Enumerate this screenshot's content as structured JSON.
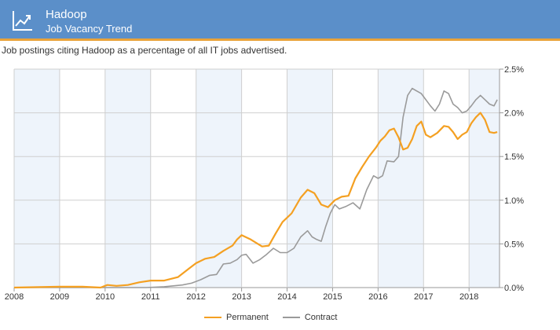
{
  "header": {
    "title": "Hadoop",
    "subtitle": "Job Vacancy Trend",
    "icon": "trend-line-icon",
    "background_color": "#5b8fc9",
    "accent_color": "#e9a33a"
  },
  "description": "Job postings citing Hadoop as a percentage of all IT jobs advertised.",
  "chart_data": {
    "type": "line",
    "title": "",
    "xlabel": "",
    "ylabel": "",
    "x_ticks": [
      "2008",
      "2009",
      "2010",
      "2011",
      "2012",
      "2013",
      "2014",
      "2015",
      "2016",
      "2017",
      "2018"
    ],
    "y_ticks": [
      "0.0%",
      "0.5%",
      "1.0%",
      "1.5%",
      "2.0%",
      "2.5%"
    ],
    "xlim": [
      2008,
      2018.67
    ],
    "ylim": [
      0,
      2.5
    ],
    "grid": true,
    "shaded_years": [
      2008,
      2010,
      2012,
      2014,
      2016,
      2018
    ],
    "legend_position": "bottom",
    "series": [
      {
        "name": "Permanent",
        "color": "#f4a022",
        "points": [
          [
            2008.0,
            0.0
          ],
          [
            2009.0,
            0.01
          ],
          [
            2009.5,
            0.01
          ],
          [
            2009.9,
            0.0
          ],
          [
            2010.05,
            0.03
          ],
          [
            2010.25,
            0.02
          ],
          [
            2010.5,
            0.03
          ],
          [
            2010.75,
            0.06
          ],
          [
            2011.0,
            0.08
          ],
          [
            2011.3,
            0.08
          ],
          [
            2011.6,
            0.12
          ],
          [
            2011.85,
            0.22
          ],
          [
            2012.0,
            0.28
          ],
          [
            2012.2,
            0.33
          ],
          [
            2012.4,
            0.35
          ],
          [
            2012.6,
            0.42
          ],
          [
            2012.8,
            0.48
          ],
          [
            2012.9,
            0.55
          ],
          [
            2013.0,
            0.6
          ],
          [
            2013.2,
            0.55
          ],
          [
            2013.45,
            0.47
          ],
          [
            2013.6,
            0.48
          ],
          [
            2013.75,
            0.62
          ],
          [
            2013.9,
            0.75
          ],
          [
            2014.1,
            0.85
          ],
          [
            2014.3,
            1.03
          ],
          [
            2014.45,
            1.12
          ],
          [
            2014.6,
            1.08
          ],
          [
            2014.75,
            0.95
          ],
          [
            2014.9,
            0.92
          ],
          [
            2015.05,
            1.0
          ],
          [
            2015.2,
            1.04
          ],
          [
            2015.35,
            1.05
          ],
          [
            2015.5,
            1.25
          ],
          [
            2015.65,
            1.38
          ],
          [
            2015.8,
            1.5
          ],
          [
            2015.95,
            1.6
          ],
          [
            2016.05,
            1.68
          ],
          [
            2016.15,
            1.73
          ],
          [
            2016.25,
            1.8
          ],
          [
            2016.35,
            1.82
          ],
          [
            2016.45,
            1.72
          ],
          [
            2016.55,
            1.58
          ],
          [
            2016.65,
            1.6
          ],
          [
            2016.75,
            1.7
          ],
          [
            2016.85,
            1.85
          ],
          [
            2016.95,
            1.9
          ],
          [
            2017.05,
            1.75
          ],
          [
            2017.15,
            1.72
          ],
          [
            2017.3,
            1.77
          ],
          [
            2017.45,
            1.85
          ],
          [
            2017.55,
            1.84
          ],
          [
            2017.65,
            1.78
          ],
          [
            2017.75,
            1.7
          ],
          [
            2017.85,
            1.75
          ],
          [
            2017.95,
            1.78
          ],
          [
            2018.05,
            1.88
          ],
          [
            2018.15,
            1.95
          ],
          [
            2018.25,
            2.0
          ],
          [
            2018.35,
            1.92
          ],
          [
            2018.45,
            1.78
          ],
          [
            2018.55,
            1.77
          ],
          [
            2018.62,
            1.78
          ]
        ]
      },
      {
        "name": "Contract",
        "color": "#9a9a9a",
        "points": [
          [
            2008.0,
            0.0
          ],
          [
            2010.9,
            0.0
          ],
          [
            2011.3,
            0.01
          ],
          [
            2011.7,
            0.03
          ],
          [
            2011.9,
            0.05
          ],
          [
            2012.1,
            0.09
          ],
          [
            2012.3,
            0.14
          ],
          [
            2012.45,
            0.15
          ],
          [
            2012.6,
            0.27
          ],
          [
            2012.75,
            0.28
          ],
          [
            2012.9,
            0.32
          ],
          [
            2013.0,
            0.37
          ],
          [
            2013.1,
            0.38
          ],
          [
            2013.25,
            0.28
          ],
          [
            2013.4,
            0.32
          ],
          [
            2013.55,
            0.38
          ],
          [
            2013.7,
            0.45
          ],
          [
            2013.85,
            0.4
          ],
          [
            2014.0,
            0.4
          ],
          [
            2014.15,
            0.45
          ],
          [
            2014.3,
            0.58
          ],
          [
            2014.45,
            0.65
          ],
          [
            2014.55,
            0.58
          ],
          [
            2014.65,
            0.55
          ],
          [
            2014.75,
            0.53
          ],
          [
            2014.85,
            0.7
          ],
          [
            2014.95,
            0.85
          ],
          [
            2015.05,
            0.95
          ],
          [
            2015.15,
            0.9
          ],
          [
            2015.3,
            0.93
          ],
          [
            2015.45,
            0.97
          ],
          [
            2015.6,
            0.9
          ],
          [
            2015.75,
            1.12
          ],
          [
            2015.9,
            1.28
          ],
          [
            2016.0,
            1.25
          ],
          [
            2016.1,
            1.28
          ],
          [
            2016.2,
            1.45
          ],
          [
            2016.35,
            1.44
          ],
          [
            2016.45,
            1.5
          ],
          [
            2016.55,
            1.95
          ],
          [
            2016.65,
            2.2
          ],
          [
            2016.75,
            2.28
          ],
          [
            2016.85,
            2.25
          ],
          [
            2016.95,
            2.22
          ],
          [
            2017.05,
            2.15
          ],
          [
            2017.15,
            2.08
          ],
          [
            2017.25,
            2.02
          ],
          [
            2017.35,
            2.1
          ],
          [
            2017.45,
            2.25
          ],
          [
            2017.55,
            2.22
          ],
          [
            2017.65,
            2.1
          ],
          [
            2017.75,
            2.06
          ],
          [
            2017.85,
            2.0
          ],
          [
            2017.95,
            2.02
          ],
          [
            2018.05,
            2.08
          ],
          [
            2018.15,
            2.15
          ],
          [
            2018.25,
            2.2
          ],
          [
            2018.35,
            2.15
          ],
          [
            2018.45,
            2.1
          ],
          [
            2018.55,
            2.08
          ],
          [
            2018.62,
            2.15
          ]
        ]
      }
    ]
  }
}
